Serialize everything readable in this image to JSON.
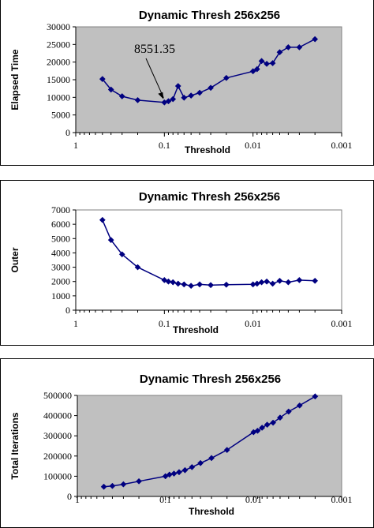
{
  "chart_data": [
    {
      "type": "scatter",
      "title": "Dynamic Thresh 256x256",
      "xlabel": "Threshold",
      "ylabel": "Elapsed Time",
      "x_scale": "log",
      "x_reversed": true,
      "xlim": [
        1,
        0.001
      ],
      "ylim": [
        0,
        30000
      ],
      "x_ticks": [
        "1",
        "0.1",
        "0.01",
        "0.001"
      ],
      "y_ticks": [
        "0",
        "5000",
        "10000",
        "15000",
        "20000",
        "25000",
        "30000"
      ],
      "plot_bg": "#c0c0c0",
      "series_color": "#000080",
      "annotation": "8551.35",
      "x": [
        0.5,
        0.4,
        0.3,
        0.2,
        0.1,
        0.09,
        0.08,
        0.07,
        0.06,
        0.05,
        0.04,
        0.03,
        0.02,
        0.01,
        0.009,
        0.008,
        0.007,
        0.006,
        0.005,
        0.004,
        0.003,
        0.002
      ],
      "values": [
        15200,
        12200,
        10300,
        9200,
        8551.35,
        8900,
        9500,
        13200,
        9900,
        10500,
        11300,
        12700,
        15500,
        17400,
        18000,
        20300,
        19500,
        19700,
        22800,
        24200,
        24200,
        26500
      ]
    },
    {
      "type": "scatter",
      "title": "Dynamic Thresh 256x256",
      "xlabel": "Threshold",
      "ylabel": "Outer",
      "x_scale": "log",
      "x_reversed": true,
      "xlim": [
        1,
        0.001
      ],
      "ylim": [
        0,
        7000
      ],
      "x_ticks": [
        "1",
        "0.1",
        "0.01",
        "0.001"
      ],
      "y_ticks": [
        "0",
        "1000",
        "2000",
        "3000",
        "4000",
        "5000",
        "6000",
        "7000"
      ],
      "plot_bg": "#ffffff",
      "series_color": "#000080",
      "x": [
        0.5,
        0.4,
        0.3,
        0.2,
        0.1,
        0.09,
        0.08,
        0.07,
        0.06,
        0.05,
        0.04,
        0.03,
        0.02,
        0.01,
        0.009,
        0.008,
        0.007,
        0.006,
        0.005,
        0.004,
        0.003,
        0.002
      ],
      "values": [
        6300,
        4900,
        3900,
        3000,
        2100,
        2000,
        1950,
        1850,
        1800,
        1700,
        1800,
        1750,
        1780,
        1800,
        1850,
        1950,
        2000,
        1850,
        2050,
        1950,
        2100,
        2050
      ]
    },
    {
      "type": "scatter",
      "title": "Dynamic Thresh 256x256",
      "xlabel": "Threshold",
      "ylabel": "Total Iterations",
      "x_scale": "log",
      "x_reversed": true,
      "xlim": [
        1,
        0.001
      ],
      "ylim": [
        0,
        500000
      ],
      "x_ticks": [
        "1",
        "0.1",
        "0.01",
        "0.001"
      ],
      "y_ticks": [
        "0",
        "100000",
        "200000",
        "300000",
        "400000",
        "500000"
      ],
      "plot_bg": "#c0c0c0",
      "series_color": "#000080",
      "x": [
        0.5,
        0.4,
        0.3,
        0.2,
        0.1,
        0.09,
        0.08,
        0.07,
        0.06,
        0.05,
        0.04,
        0.03,
        0.02,
        0.01,
        0.009,
        0.008,
        0.007,
        0.006,
        0.005,
        0.004,
        0.003,
        0.002
      ],
      "values": [
        48000,
        52000,
        60000,
        75000,
        100000,
        108000,
        113000,
        120000,
        130000,
        145000,
        165000,
        190000,
        230000,
        318000,
        325000,
        340000,
        355000,
        365000,
        390000,
        420000,
        450000,
        495000
      ]
    }
  ]
}
